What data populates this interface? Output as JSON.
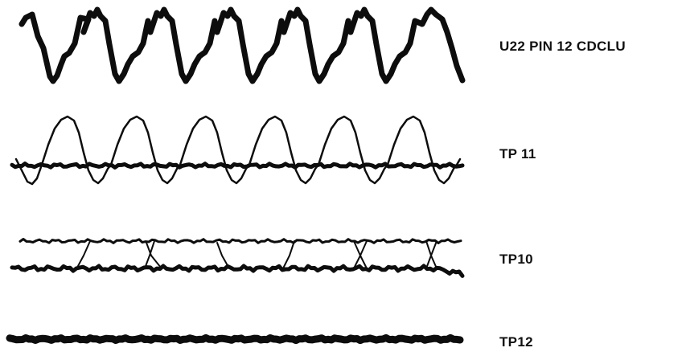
{
  "colors": {
    "ink": "#0d0d0d",
    "background": "#ffffff"
  },
  "traces": [
    {
      "label": "U22 PIN 12 CDCLU"
    },
    {
      "label": "TP 11"
    },
    {
      "label": "TP10"
    },
    {
      "label": "TP12"
    }
  ]
}
